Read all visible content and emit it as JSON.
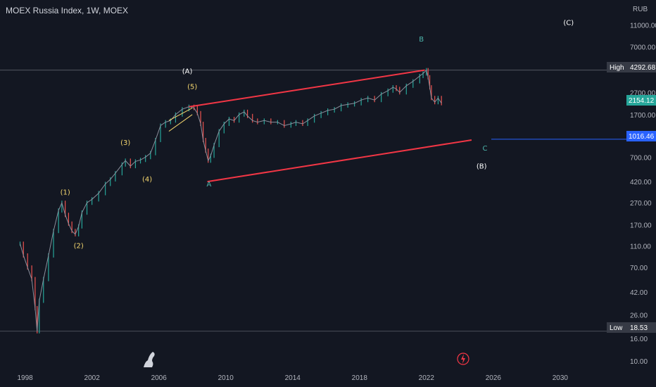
{
  "header": {
    "title": "MOEX Russia Index, 1W, MOEX"
  },
  "axis": {
    "currency": "RUB"
  },
  "colors": {
    "background": "#131722",
    "text": "#b2b5be",
    "up": "#26a69a",
    "down": "#ef5350",
    "channel": "#f23645",
    "wave_yellow": "#f5d76e",
    "wave_teal": "#4db6ac",
    "wave_white": "#ffffff",
    "hline": "#5d606b",
    "blue_line": "#2962ff"
  },
  "badges": {
    "high_label": "High",
    "high_value": "4292.68",
    "low_label": "Low",
    "low_value": "18.53",
    "last_value": "2154.12",
    "blue_value": "1016.46"
  },
  "chart_data": {
    "type": "line",
    "title": "MOEX Russia Index, 1W, MOEX",
    "ylabel": "RUB",
    "y_scale": "log",
    "ylim": [
      9,
      16000
    ],
    "xlim": [
      1996.5,
      2032.7
    ],
    "y_ticks": [
      "11000.00",
      "7000.00",
      "4292.68",
      "2700.00",
      "2154.12",
      "1700.00",
      "1016.46",
      "700.00",
      "420.00",
      "270.00",
      "170.00",
      "110.00",
      "70.00",
      "42.00",
      "26.00",
      "18.53",
      "16.00",
      "10.00"
    ],
    "x_ticks": [
      "1998",
      "2002",
      "2006",
      "2010",
      "2014",
      "2018",
      "2022",
      "2026",
      "2030"
    ],
    "series": [
      {
        "x": [
          1997.7,
          1997.9,
          1998.15,
          1998.4,
          1998.6,
          1998.72,
          1998.85,
          1999.1,
          1999.4,
          1999.7,
          2000.0,
          2000.2,
          2000.4,
          2000.6,
          2000.8,
          2001.0,
          2001.2,
          2001.4,
          2001.7,
          2002.0,
          2002.4,
          2002.8,
          2003.1,
          2003.4,
          2003.8,
          2004.0,
          2004.3,
          2004.6,
          2004.9,
          2005.2,
          2005.5,
          2005.8,
          2006.1,
          2006.4,
          2006.7,
          2007.0,
          2007.4,
          2007.8,
          2008.1,
          2008.3,
          2008.5,
          2008.65,
          2008.8,
          2008.95,
          2009.1,
          2009.3,
          2009.6,
          2009.9,
          2010.2,
          2010.5,
          2010.8,
          2011.1,
          2011.3,
          2011.6,
          2011.9,
          2012.3,
          2012.7,
          2013.1,
          2013.5,
          2013.9,
          2014.2,
          2014.6,
          2014.9,
          2015.3,
          2015.7,
          2016.1,
          2016.5,
          2016.9,
          2017.3,
          2017.7,
          2018.1,
          2018.5,
          2018.9,
          2019.3,
          2019.7,
          2020.0,
          2020.2,
          2020.4,
          2020.8,
          2021.2,
          2021.6,
          2021.8,
          2022.0,
          2022.1,
          2022.2,
          2022.3,
          2022.5,
          2022.7,
          2022.9
        ],
        "y": [
          115,
          90,
          70,
          55,
          30,
          18.53,
          35,
          55,
          90,
          150,
          230,
          270,
          210,
          175,
          150,
          140,
          165,
          220,
          270,
          290,
          330,
          400,
          440,
          500,
          600,
          650,
          580,
          640,
          660,
          700,
          760,
          1000,
          1350,
          1450,
          1500,
          1700,
          1900,
          2000,
          1950,
          1750,
          1400,
          1000,
          800,
          650,
          720,
          900,
          1200,
          1400,
          1550,
          1500,
          1700,
          1800,
          1650,
          1500,
          1450,
          1500,
          1450,
          1450,
          1350,
          1400,
          1450,
          1400,
          1500,
          1650,
          1750,
          1850,
          1900,
          2050,
          2100,
          2150,
          2300,
          2400,
          2300,
          2600,
          2800,
          3000,
          2900,
          2700,
          3100,
          3400,
          3800,
          4000,
          4292.68,
          3700,
          3000,
          2400,
          2200,
          2400,
          2154.12
        ]
      }
    ],
    "channel": {
      "upper": [
        [
          2007.8,
          2000
        ],
        [
          2021.9,
          4292.68
        ]
      ],
      "lower": [
        [
          2008.9,
          420
        ],
        [
          2024.7,
          1000
        ]
      ],
      "wedge_top": [
        [
          2006.6,
          1500
        ],
        [
          2008.0,
          1950
        ]
      ],
      "wedge_bottom": [
        [
          2006.6,
          1200
        ],
        [
          2008.0,
          1700
        ]
      ]
    },
    "annotations": [
      {
        "text": "(1)",
        "x": 2000.4,
        "y": 320,
        "color": "yellow"
      },
      {
        "text": "(2)",
        "x": 2001.2,
        "y": 105,
        "color": "yellow"
      },
      {
        "text": "(3)",
        "x": 2004.0,
        "y": 900,
        "color": "yellow"
      },
      {
        "text": "(4)",
        "x": 2005.3,
        "y": 420,
        "color": "yellow"
      },
      {
        "text": "(5)",
        "x": 2008.0,
        "y": 2900,
        "color": "yellow"
      },
      {
        "text": "(A)",
        "x": 2007.7,
        "y": 4000,
        "color": "white"
      },
      {
        "text": "A",
        "x": 2009.0,
        "y": 380,
        "color": "teal"
      },
      {
        "text": "B",
        "x": 2021.7,
        "y": 7800,
        "color": "teal"
      },
      {
        "text": "C",
        "x": 2025.5,
        "y": 800,
        "color": "teal"
      },
      {
        "text": "(B)",
        "x": 2025.3,
        "y": 550,
        "color": "white"
      },
      {
        "text": "(C)",
        "x": 2030.5,
        "y": 11000,
        "color": "white"
      }
    ]
  }
}
